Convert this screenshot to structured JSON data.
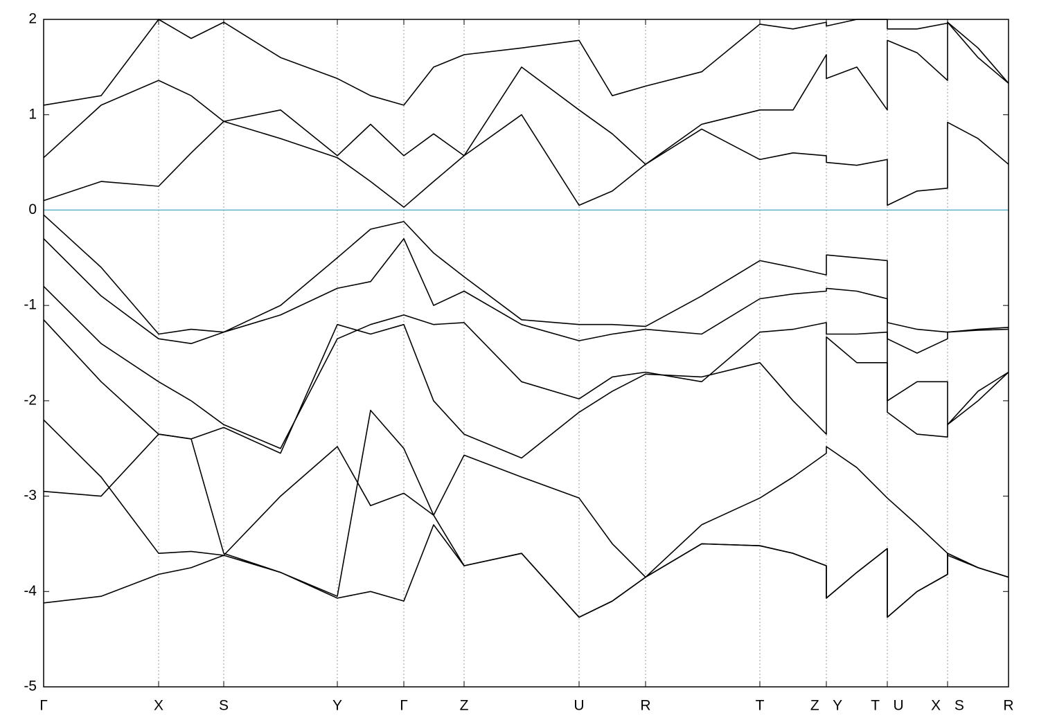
{
  "chart_data": {
    "type": "line",
    "color": "#000000",
    "fermi_level": 0,
    "fermi_color": "#5fb0c8",
    "grid": true,
    "xlim": [
      0,
      13.93
    ],
    "ylim": [
      -5,
      2
    ],
    "yticks": [
      -5,
      -4,
      -3,
      -2,
      -1,
      0,
      1,
      2
    ],
    "xticks": [
      {
        "value": 0,
        "label": "Γ"
      },
      {
        "value": 1.66,
        "label": "X"
      },
      {
        "value": 2.6,
        "label": "S"
      },
      {
        "value": 4.24,
        "label": "Y"
      },
      {
        "value": 5.2,
        "label": "Γ"
      },
      {
        "value": 6.07,
        "label": "Z"
      },
      {
        "value": 7.73,
        "label": "U"
      },
      {
        "value": 8.69,
        "label": "R"
      },
      {
        "value": 10.34,
        "label": "T"
      },
      {
        "value": 11.3,
        "label": "Z Y"
      },
      {
        "value": 12.18,
        "label": "T U"
      },
      {
        "value": 13.05,
        "label": "X S"
      },
      {
        "value": 13.93,
        "label": "R"
      }
    ],
    "x": [
      0,
      0.83,
      1.66,
      2.13,
      2.6,
      3.42,
      4.24,
      4.72,
      5.2,
      5.63,
      6.07,
      6.9,
      7.73,
      8.21,
      8.69,
      9.5,
      10.34,
      10.82,
      11.3,
      11.3,
      11.74,
      12.18,
      12.18,
      12.61,
      13.05,
      13.05,
      13.49,
      13.93
    ],
    "series": [
      {
        "values": [
          0.1,
          0.3,
          0.25,
          0.6,
          0.93,
          0.75,
          0.55,
          0.3,
          0.03,
          0.3,
          0.57,
          1.0,
          0.05,
          0.2,
          0.48,
          0.85,
          0.53,
          0.6,
          0.57,
          0.5,
          0.47,
          0.53,
          0.05,
          0.2,
          0.23,
          0.92,
          0.75,
          0.48
        ]
      },
      {
        "values": [
          0.55,
          1.1,
          1.36,
          1.2,
          0.93,
          1.05,
          0.57,
          0.9,
          0.57,
          0.8,
          0.57,
          1.5,
          1.05,
          0.8,
          0.48,
          0.9,
          1.05,
          1.05,
          1.63,
          1.38,
          1.5,
          1.05,
          1.78,
          1.65,
          1.36,
          1.97,
          1.6,
          1.33
        ]
      },
      {
        "values": [
          1.1,
          1.2,
          2.0,
          1.8,
          1.97,
          1.6,
          1.38,
          1.2,
          1.1,
          1.5,
          1.63,
          1.7,
          1.78,
          1.2,
          1.3,
          1.45,
          1.95,
          1.9,
          1.97,
          1.93,
          2.0,
          2.0,
          1.9,
          1.9,
          1.96,
          1.97,
          1.7,
          1.33
        ]
      },
      {
        "values": [
          -0.05,
          -0.6,
          -1.3,
          -1.25,
          -1.28,
          -1.0,
          -0.5,
          -0.2,
          -0.12,
          -0.45,
          -0.7,
          -1.15,
          -1.2,
          -1.2,
          -1.22,
          -0.9,
          -0.53,
          -0.6,
          -0.68,
          -0.47,
          -0.5,
          -0.53,
          -1.18,
          -1.25,
          -1.28,
          -1.28,
          -1.25,
          -1.23
        ]
      },
      {
        "values": [
          -0.3,
          -0.9,
          -1.35,
          -1.4,
          -1.28,
          -1.1,
          -0.82,
          -0.75,
          -0.3,
          -1.0,
          -0.85,
          -1.2,
          -1.37,
          -1.3,
          -1.25,
          -1.3,
          -0.93,
          -0.88,
          -0.85,
          -0.82,
          -0.85,
          -0.93,
          -1.35,
          -1.5,
          -1.35,
          -1.28,
          -1.26,
          -1.25
        ]
      },
      {
        "values": [
          -0.8,
          -1.4,
          -1.8,
          -2.0,
          -2.25,
          -2.5,
          -1.35,
          -1.2,
          -1.1,
          -1.2,
          -1.18,
          -1.8,
          -1.98,
          -1.75,
          -1.7,
          -1.8,
          -1.28,
          -1.25,
          -1.18,
          -1.3,
          -1.3,
          -1.28,
          -2.0,
          -1.8,
          -1.8,
          -2.25,
          -1.9,
          -1.7
        ]
      },
      {
        "values": [
          -1.15,
          -1.8,
          -2.35,
          -2.4,
          -2.28,
          -2.55,
          -1.2,
          -1.3,
          -1.2,
          -2.0,
          -2.35,
          -2.6,
          -2.12,
          -1.9,
          -1.72,
          -1.75,
          -1.6,
          -2.0,
          -2.35,
          -1.33,
          -1.6,
          -1.6,
          -2.12,
          -2.35,
          -2.38,
          -2.25,
          -2.0,
          -1.7
        ]
      },
      {
        "values": [
          -2.2,
          -2.8,
          -3.6,
          -3.58,
          -3.62,
          -3.0,
          -2.48,
          -3.1,
          -2.97,
          -3.2,
          -2.57,
          -2.8,
          -3.02,
          -3.5,
          -3.85,
          -3.3,
          -3.02,
          -2.8,
          -2.55,
          -2.48,
          -2.7,
          -3.02,
          -3.02,
          -3.3,
          -3.6,
          -3.62,
          -3.75,
          -3.85
        ]
      },
      {
        "values": [
          -2.95,
          -3.0,
          -2.35,
          -2.4,
          -3.6,
          -3.8,
          -4.05,
          -2.1,
          -2.5,
          -3.2,
          -3.73,
          -3.6,
          -4.27,
          -4.1,
          -3.85,
          -3.5,
          -3.52,
          -3.6,
          -3.73,
          -4.07,
          -3.8,
          -3.55,
          -4.27,
          -4.0,
          -3.82,
          -3.6,
          -3.75,
          -3.85
        ]
      },
      {
        "values": [
          -4.12,
          -4.05,
          -3.82,
          -3.75,
          -3.62,
          -3.8,
          -4.07,
          -4.0,
          -4.1,
          -3.3,
          -3.73,
          -3.6,
          -4.27,
          -4.1,
          -3.85,
          -3.5,
          -3.52,
          -3.6,
          -3.73,
          -4.07,
          -3.8,
          -3.55,
          -4.27,
          -4.0,
          -3.82,
          -3.6,
          -3.75,
          -3.85
        ]
      }
    ]
  }
}
